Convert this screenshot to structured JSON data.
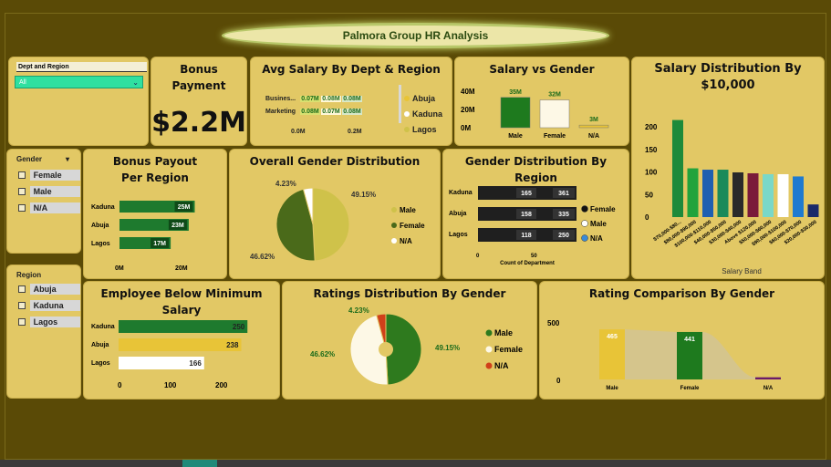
{
  "title": "Palmora Group HR Analysis",
  "dept_slicer": {
    "label": "Dept and Region",
    "value": "All"
  },
  "gender_slicer": {
    "label": "Gender",
    "items": [
      "Female",
      "Male",
      "N/A"
    ]
  },
  "region_slicer": {
    "label": "Region",
    "items": [
      "Abuja",
      "Kaduna",
      "Lagos"
    ]
  },
  "bonus_card": {
    "title": "Bonus Payment",
    "value": "$2.2M"
  },
  "avg_salary": {
    "title": "Avg Salary By Dept & Region",
    "rows": [
      {
        "label": "Busines...",
        "values": [
          "0.07M",
          "0.08M",
          "0.08M"
        ]
      },
      {
        "label": "Marketing",
        "values": [
          "0.08M",
          "0.07M",
          "0.08M"
        ]
      }
    ],
    "axis": [
      "0.0M",
      "0.2M"
    ],
    "legend": [
      "Abuja",
      "Kaduna",
      "Lagos"
    ]
  },
  "salary_gender": {
    "title": "Salary vs Gender",
    "y_ticks": [
      "40M",
      "20M",
      "0M"
    ],
    "bars": [
      {
        "label": "Male",
        "value_label": "35M",
        "value": 35,
        "color": "#1e7a1e"
      },
      {
        "label": "Female",
        "value_label": "32M",
        "value": 32,
        "color": "#fdf8e6"
      },
      {
        "label": "N/A",
        "value_label": "3M",
        "value": 3,
        "color": "#e8c437"
      }
    ]
  },
  "salary_dist": {
    "title": "Salary Distribution By $10,000",
    "y_ticks": [
      "200",
      "150",
      "100",
      "50",
      "0"
    ],
    "xlabel": "Salary Band",
    "bars": [
      {
        "label": "$70,000-$80...",
        "value": 215,
        "color": "#1e8a3a"
      },
      {
        "label": "$80,000-$90,000",
        "value": 108,
        "color": "#22a33c"
      },
      {
        "label": "$100,000-$110,000",
        "value": 105,
        "color": "#1f5fb0"
      },
      {
        "label": "$40,000-$50,000",
        "value": 105,
        "color": "#1a8a5a"
      },
      {
        "label": "$30,000-$40,000",
        "value": 99,
        "color": "#2a2a2a"
      },
      {
        "label": "Above $120,000",
        "value": 97,
        "color": "#7a1a3a"
      },
      {
        "label": "$50,000-$60,000",
        "value": 95,
        "color": "#7ad8c8"
      },
      {
        "label": "$90,000-$100,000",
        "value": 95,
        "color": "#ffffff"
      },
      {
        "label": "$60,000-$70,000",
        "value": 90,
        "color": "#1f7ad0"
      },
      {
        "label": "$20,000-$30,000",
        "value": 28,
        "color": "#1a2a6a"
      }
    ]
  },
  "bonus_region": {
    "title": "Bonus Payout Per Region",
    "bars": [
      {
        "label": "Kaduna",
        "value_label": "25M",
        "value": 25
      },
      {
        "label": "Abuja",
        "value_label": "23M",
        "value": 23
      },
      {
        "label": "Lagos",
        "value_label": "17M",
        "value": 17
      }
    ],
    "axis": [
      "0M",
      "20M"
    ]
  },
  "gender_overall": {
    "title": "Overall Gender Distribution",
    "slices": [
      {
        "label": "Male",
        "pct": 49.15,
        "pct_label": "49.15%",
        "color": "#cfc24a"
      },
      {
        "label": "Female",
        "pct": 46.62,
        "pct_label": "46.62%",
        "color": "#4a6a1a"
      },
      {
        "label": "N/A",
        "pct": 4.23,
        "pct_label": "4.23%",
        "color": "#ffffff"
      }
    ]
  },
  "gender_region": {
    "title": "Gender Distribution By Region",
    "rows": [
      {
        "label": "Kaduna",
        "a": "165",
        "b": "361",
        "a_val": 165,
        "b_val": 361
      },
      {
        "label": "Abuja",
        "a": "158",
        "b": "335",
        "a_val": 158,
        "b_val": 335
      },
      {
        "label": "Lagos",
        "a": "118",
        "b": "250",
        "a_val": 118,
        "b_val": 250
      }
    ],
    "axis": [
      "0",
      "50"
    ],
    "xlabel": "Count of Department",
    "legend": [
      {
        "label": "Female",
        "color": "#111111"
      },
      {
        "label": "Male",
        "color": "#ffffff"
      },
      {
        "label": "N/A",
        "color": "#3a8ad8"
      }
    ]
  },
  "below_min": {
    "title": "Employee Below Minimum Salary",
    "bars": [
      {
        "label": "Kaduna",
        "value_label": "250",
        "value": 250,
        "color": "#1e7a2e"
      },
      {
        "label": "Abuja",
        "value_label": "238",
        "value": 238,
        "color": "#e8c437"
      },
      {
        "label": "Lagos",
        "value_label": "166",
        "value": 166,
        "color": "#ffffff"
      }
    ],
    "axis": [
      "0",
      "100",
      "200"
    ]
  },
  "ratings_gender": {
    "title": "Ratings Distribution By Gender",
    "slices": [
      {
        "label": "Male",
        "pct": 49.15,
        "pct_label": "49.15%",
        "color": "#2e7a1e"
      },
      {
        "label": "Female",
        "pct": 46.62,
        "pct_label": "46.62%",
        "color": "#fdf8e6"
      },
      {
        "label": "N/A",
        "pct": 4.23,
        "pct_label": "4.23%",
        "color": "#d0401a"
      }
    ]
  },
  "rating_compare": {
    "title": "Rating Comparison By Gender",
    "y_ticks": [
      "500",
      "0"
    ],
    "bars": [
      {
        "label": "Male",
        "value_label": "465",
        "value": 465,
        "color": "#e8c437"
      },
      {
        "label": "Female",
        "value_label": "441",
        "value": 441,
        "color": "#1e7a1e"
      },
      {
        "label": "N/A",
        "value_label": "",
        "value": 20,
        "color": "#6a1a6a"
      }
    ]
  }
}
